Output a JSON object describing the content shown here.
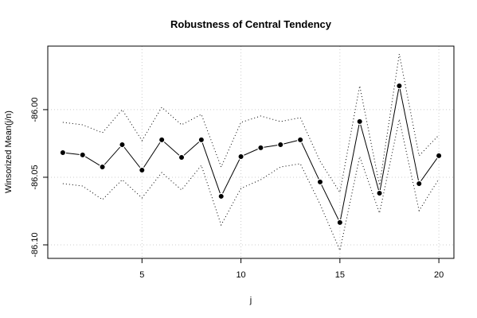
{
  "chart_data": {
    "type": "line",
    "title": "Robustness of Central Tendency",
    "xlabel": "j",
    "ylabel": "Winsorized Mean(j/n)",
    "x": [
      1,
      2,
      3,
      4,
      5,
      6,
      7,
      8,
      9,
      10,
      11,
      12,
      13,
      14,
      15,
      16,
      17,
      18,
      19,
      20
    ],
    "series": [
      {
        "color": "#000000",
        "style": "solid",
        "markers": true,
        "values": [
          -86.0318,
          -86.0335,
          -86.0424,
          -86.0259,
          -86.0447,
          -86.0223,
          -86.0353,
          -86.0223,
          -86.0641,
          -86.0347,
          -86.0282,
          -86.0259,
          -86.0223,
          -86.0535,
          -86.0835,
          -86.0088,
          -86.0618,
          -85.9824,
          -86.0547,
          -86.0341
        ]
      },
      {
        "color": "#000000",
        "style": "dotted",
        "markers": false,
        "values": [
          -86.0094,
          -86.0112,
          -86.0171,
          -86.0,
          -86.0229,
          -85.9982,
          -86.0112,
          -86.0035,
          -86.0424,
          -86.0094,
          -86.0047,
          -86.0088,
          -86.0059,
          -86.0382,
          -86.0612,
          -85.9824,
          -86.0559,
          -85.9588,
          -86.0341,
          -86.0188
        ]
      },
      {
        "color": "#000000",
        "style": "dotted",
        "markers": false,
        "values": [
          -86.0547,
          -86.0565,
          -86.0665,
          -86.0518,
          -86.0653,
          -86.0465,
          -86.0594,
          -86.0412,
          -86.0853,
          -86.0582,
          -86.0518,
          -86.0424,
          -86.04,
          -86.07,
          -86.1041,
          -86.0347,
          -86.0765,
          -86.0071,
          -86.0747,
          -86.0512
        ]
      }
    ],
    "xlim": [
      0.24,
      20.76
    ],
    "xticks": [
      5,
      10,
      15,
      20
    ],
    "ylim": [
      -86.11,
      -85.953
    ],
    "yticks": [
      {
        "value": -86.1,
        "label": "-86.10"
      },
      {
        "value": -86.05,
        "label": "-86.05"
      },
      {
        "value": -86.0,
        "label": "-86.00"
      }
    ],
    "grid": true
  }
}
